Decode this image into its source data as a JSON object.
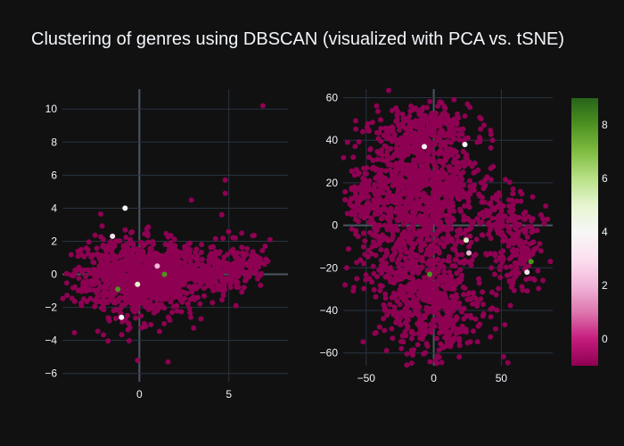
{
  "chart_data": {
    "title": "Clustering of genres using DBSCAN (visualized with PCA vs. tSNE)",
    "type": "scatter",
    "background": "#111111",
    "grid": true,
    "colorscale": {
      "name": "PiYG",
      "range": [
        -1,
        9
      ],
      "ticks": [
        "0",
        "2",
        "4",
        "6",
        "8"
      ],
      "tick_values": [
        0,
        2,
        4,
        6,
        8
      ],
      "stops": [
        "#8e0152",
        "#c51b7d",
        "#de77ae",
        "#f1b6da",
        "#fde0ef",
        "#f7f7f7",
        "#e6f5d0",
        "#b8e186",
        "#7fbc41",
        "#4d9221",
        "#276419"
      ],
      "legend_position": "right"
    },
    "subplots": [
      {
        "name": "PCA",
        "xlim": [
          -4.3,
          8.3
        ],
        "ylim": [
          -6.5,
          11.2
        ],
        "x_ticks": [
          0,
          5
        ],
        "x_tick_labels": [
          "0",
          "5"
        ],
        "y_ticks": [
          -6,
          -4,
          -2,
          0,
          2,
          4,
          6,
          8,
          10
        ],
        "y_tick_labels": [
          "−6",
          "−4",
          "−2",
          "0",
          "2",
          "4",
          "6",
          "8",
          "10"
        ],
        "bulk_cluster": {
          "label": -1,
          "center": [
            0.0,
            -0.2
          ],
          "spread": [
            1.7,
            1.15
          ],
          "tail_to": [
            6.5,
            0.5
          ],
          "count": 1400
        },
        "highlighted_points": [
          {
            "x": -0.8,
            "y": 4.0,
            "label": 4
          },
          {
            "x": -1.0,
            "y": -2.6,
            "label": 4
          },
          {
            "x": 1.4,
            "y": 0.0,
            "label": 8
          },
          {
            "x": -1.2,
            "y": -0.9,
            "label": 8
          },
          {
            "x": -0.1,
            "y": -0.6,
            "label": 5
          },
          {
            "x": 1.0,
            "y": 0.5,
            "label": 2
          },
          {
            "x": -1.5,
            "y": 2.3,
            "label": 3
          },
          {
            "x": 6.9,
            "y": 10.2,
            "label": -1
          },
          {
            "x": 7.3,
            "y": 2.1,
            "label": -1
          },
          {
            "x": 4.8,
            "y": 5.7,
            "label": -1
          },
          {
            "x": 4.8,
            "y": 4.9,
            "label": -1
          },
          {
            "x": 4.6,
            "y": 3.6,
            "label": -1
          },
          {
            "x": -0.1,
            "y": -5.2,
            "label": -1
          },
          {
            "x": 1.6,
            "y": -5.3,
            "label": -1
          },
          {
            "x": 2.9,
            "y": 4.5,
            "label": -1
          }
        ]
      },
      {
        "name": "tSNE",
        "xlim": [
          -67,
          88
        ],
        "ylim": [
          -66,
          64
        ],
        "x_ticks": [
          -50,
          0,
          50
        ],
        "x_tick_labels": [
          "−50",
          "0",
          "50"
        ],
        "y_ticks": [
          -60,
          -40,
          -20,
          0,
          20,
          40,
          60
        ],
        "y_tick_labels": [
          "−60",
          "−40",
          "−20",
          "0",
          "20",
          "40",
          "60"
        ],
        "bulk_clusters": [
          {
            "label": -1,
            "center": [
              -10,
              44
            ],
            "spread": [
              18,
              6
            ],
            "count": 300
          },
          {
            "label": -1,
            "center": [
              -22,
              18
            ],
            "spread": [
              20,
              12
            ],
            "count": 450
          },
          {
            "label": -1,
            "center": [
              8,
              18
            ],
            "spread": [
              15,
              14
            ],
            "count": 350
          },
          {
            "label": -1,
            "center": [
              -18,
              -15
            ],
            "spread": [
              18,
              14
            ],
            "count": 380
          },
          {
            "label": -1,
            "center": [
              2,
              -40
            ],
            "spread": [
              18,
              12
            ],
            "count": 420
          },
          {
            "label": -1,
            "center": [
              60,
              -7
            ],
            "spread": [
              9,
              12
            ],
            "count": 220
          },
          {
            "label": -1,
            "center": [
              -50,
              12
            ],
            "spread": [
              6,
              5
            ],
            "count": 60
          },
          {
            "label": -1,
            "center": [
              44,
              4
            ],
            "spread": [
              6,
              5
            ],
            "count": 40
          }
        ],
        "highlighted_points": [
          {
            "x": 24,
            "y": -7,
            "label": 5
          },
          {
            "x": 26,
            "y": -13,
            "label": 2
          },
          {
            "x": -3,
            "y": -23,
            "label": 8
          },
          {
            "x": 72,
            "y": -17,
            "label": 8
          },
          {
            "x": 69,
            "y": -22,
            "label": 3
          },
          {
            "x": -7,
            "y": 37,
            "label": 4
          },
          {
            "x": 23,
            "y": 38,
            "label": 4
          }
        ]
      }
    ]
  }
}
